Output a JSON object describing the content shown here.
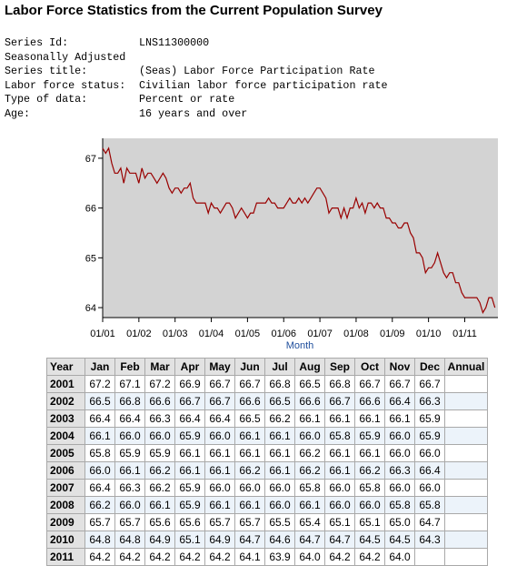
{
  "page_title": "Labor Force Statistics from the Current Population Survey",
  "series_info": [
    {
      "label": "Series Id:",
      "value": "LNS11300000"
    },
    {
      "label": "Seasonally Adjusted",
      "value": ""
    },
    {
      "label": "Series title:",
      "value": "(Seas) Labor Force Participation Rate"
    },
    {
      "label": "Labor force status:",
      "value": "Civilian labor force participation rate"
    },
    {
      "label": "Type of data:",
      "value": "Percent or rate"
    },
    {
      "label": "Age:",
      "value": "16 years and over"
    }
  ],
  "colors": {
    "line": "#990000",
    "plot_bg": "#d3d3d3",
    "xlabel": "#1f4e9c",
    "alt_row": "#ecf3fa",
    "header": "#e2e2e2"
  },
  "chart_data": {
    "type": "line",
    "xlabel": "Month",
    "ylabel": "",
    "ylim": [
      63.8,
      67.4
    ],
    "yticks": [
      64,
      65,
      66,
      67
    ],
    "ytick_labels": [
      "64",
      "65",
      "66",
      "67"
    ],
    "xtick_labels": [
      "01/01",
      "01/02",
      "01/03",
      "01/04",
      "01/05",
      "01/06",
      "01/07",
      "01/08",
      "01/09",
      "01/10",
      "01/11"
    ],
    "grid": false,
    "series": [
      {
        "values": [
          67.2,
          67.1,
          67.2,
          66.9,
          66.7,
          66.7,
          66.8,
          66.5,
          66.8,
          66.7,
          66.7,
          66.7,
          66.5,
          66.8,
          66.6,
          66.7,
          66.7,
          66.6,
          66.5,
          66.6,
          66.7,
          66.6,
          66.4,
          66.3,
          66.4,
          66.4,
          66.3,
          66.4,
          66.4,
          66.5,
          66.2,
          66.1,
          66.1,
          66.1,
          66.1,
          65.9,
          66.1,
          66.0,
          66.0,
          65.9,
          66.0,
          66.1,
          66.1,
          66.0,
          65.8,
          65.9,
          66.0,
          65.9,
          65.8,
          65.9,
          65.9,
          66.1,
          66.1,
          66.1,
          66.1,
          66.2,
          66.1,
          66.1,
          66.0,
          66.0,
          66.0,
          66.1,
          66.2,
          66.1,
          66.1,
          66.2,
          66.1,
          66.2,
          66.1,
          66.2,
          66.3,
          66.4,
          66.4,
          66.3,
          66.2,
          65.9,
          66.0,
          66.0,
          66.0,
          65.8,
          66.0,
          65.8,
          66.0,
          66.0,
          66.2,
          66.0,
          66.1,
          65.9,
          66.1,
          66.1,
          66.0,
          66.1,
          66.0,
          66.0,
          65.8,
          65.8,
          65.7,
          65.7,
          65.6,
          65.6,
          65.7,
          65.7,
          65.5,
          65.4,
          65.1,
          65.1,
          65.0,
          64.7,
          64.8,
          64.8,
          64.9,
          65.1,
          64.9,
          64.7,
          64.6,
          64.7,
          64.7,
          64.5,
          64.5,
          64.3,
          64.2,
          64.2,
          64.2,
          64.2,
          64.2,
          64.1,
          63.9,
          64.0,
          64.2,
          64.2,
          64.0
        ]
      }
    ]
  },
  "table": {
    "headers": [
      "Year",
      "Jan",
      "Feb",
      "Mar",
      "Apr",
      "May",
      "Jun",
      "Jul",
      "Aug",
      "Sep",
      "Oct",
      "Nov",
      "Dec",
      "Annual"
    ],
    "rows": [
      {
        "year": "2001",
        "values": [
          "67.2",
          "67.1",
          "67.2",
          "66.9",
          "66.7",
          "66.7",
          "66.8",
          "66.5",
          "66.8",
          "66.7",
          "66.7",
          "66.7"
        ],
        "annual": ""
      },
      {
        "year": "2002",
        "values": [
          "66.5",
          "66.8",
          "66.6",
          "66.7",
          "66.7",
          "66.6",
          "66.5",
          "66.6",
          "66.7",
          "66.6",
          "66.4",
          "66.3"
        ],
        "annual": ""
      },
      {
        "year": "2003",
        "values": [
          "66.4",
          "66.4",
          "66.3",
          "66.4",
          "66.4",
          "66.5",
          "66.2",
          "66.1",
          "66.1",
          "66.1",
          "66.1",
          "65.9"
        ],
        "annual": ""
      },
      {
        "year": "2004",
        "values": [
          "66.1",
          "66.0",
          "66.0",
          "65.9",
          "66.0",
          "66.1",
          "66.1",
          "66.0",
          "65.8",
          "65.9",
          "66.0",
          "65.9"
        ],
        "annual": ""
      },
      {
        "year": "2005",
        "values": [
          "65.8",
          "65.9",
          "65.9",
          "66.1",
          "66.1",
          "66.1",
          "66.1",
          "66.2",
          "66.1",
          "66.1",
          "66.0",
          "66.0"
        ],
        "annual": ""
      },
      {
        "year": "2006",
        "values": [
          "66.0",
          "66.1",
          "66.2",
          "66.1",
          "66.1",
          "66.2",
          "66.1",
          "66.2",
          "66.1",
          "66.2",
          "66.3",
          "66.4"
        ],
        "annual": ""
      },
      {
        "year": "2007",
        "values": [
          "66.4",
          "66.3",
          "66.2",
          "65.9",
          "66.0",
          "66.0",
          "66.0",
          "65.8",
          "66.0",
          "65.8",
          "66.0",
          "66.0"
        ],
        "annual": ""
      },
      {
        "year": "2008",
        "values": [
          "66.2",
          "66.0",
          "66.1",
          "65.9",
          "66.1",
          "66.1",
          "66.0",
          "66.1",
          "66.0",
          "66.0",
          "65.8",
          "65.8"
        ],
        "annual": ""
      },
      {
        "year": "2009",
        "values": [
          "65.7",
          "65.7",
          "65.6",
          "65.6",
          "65.7",
          "65.7",
          "65.5",
          "65.4",
          "65.1",
          "65.1",
          "65.0",
          "64.7"
        ],
        "annual": ""
      },
      {
        "year": "2010",
        "values": [
          "64.8",
          "64.8",
          "64.9",
          "65.1",
          "64.9",
          "64.7",
          "64.6",
          "64.7",
          "64.7",
          "64.5",
          "64.5",
          "64.3"
        ],
        "annual": ""
      },
      {
        "year": "2011",
        "values": [
          "64.2",
          "64.2",
          "64.2",
          "64.2",
          "64.2",
          "64.1",
          "63.9",
          "64.0",
          "64.2",
          "64.2",
          "64.0",
          ""
        ],
        "annual": ""
      }
    ]
  }
}
